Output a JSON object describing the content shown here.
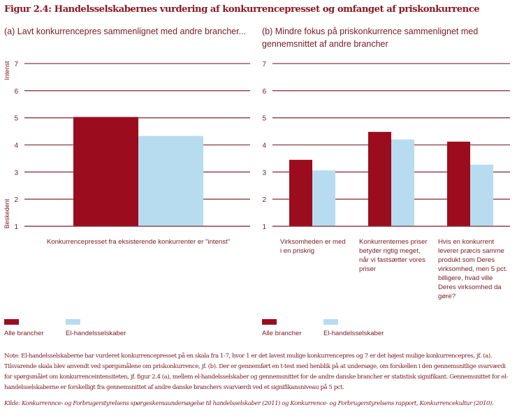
{
  "figure": {
    "title": "Figur 2.4: Handelsselskabernes vurdering af konkurrencepresset og omfanget af priskonkurrence",
    "note": "Note: El-handelsselskaberne har vurderet konkurrencepresset på en skala fra 1-7, hvor 1 er det lavest mulige konkurrencepres og 7 er det højest mulige konkurrencepres, jf. (a).  Tilsvarende skala blev anvendt ved spørgsmålene om priskonkurrence, jf. (b). Der er gennemført en t-test med henblik på at undersøge, om forskellen i den gennemsnitlige svarværdi for spørgsmålet om konkurrenceintensiteten, jf. figur 2.4 (a), mellem el-handelsselskaber og gennemsnittet for de andre danske brancher er statistisk signifikant. Gennemsnittet for el-handelsselskaberne er forskelligt fra gennemsnittet af andre danske branchers svarværdi ved et signifikansniveau på 5 pct.",
    "source": "Kilde: Konkurrennce- og Forbrugerstyrelsens spørgeskemaundersøgelse til handelsselskaber (2011) og Konkurrence- og Forbrugerstyrelsens rapport, Konkurrencekultur (2010)."
  },
  "colors": {
    "series_all": "#9b0c1e",
    "series_el": "#b7dcf0",
    "grid": "#8b3a44",
    "text": "#7a1a22"
  },
  "chart_data": [
    {
      "type": "bar",
      "title": "(a) Lavt konkurrencepres sammenlignet med andre brancher...",
      "xlabel": "",
      "ylabel_top": "Intenst",
      "ylabel_bottom": "Beskedent",
      "ylim": [
        1,
        7
      ],
      "yticks": [
        "1",
        "2",
        "3",
        "4",
        "5",
        "6",
        "7"
      ],
      "grid": true,
      "categories": [
        "Konkurrencepresset fra eksisterende konkurrenter er \"intenst\""
      ],
      "series": [
        {
          "name": "Alle brancher",
          "values": [
            5.03
          ]
        },
        {
          "name": "El-handelsselskaber",
          "values": [
            4.33
          ]
        }
      ],
      "legend": [
        "Alle brancher",
        "El-handelsselskaber"
      ],
      "legend_position": "bottom-left"
    },
    {
      "type": "bar",
      "title": "(b) Mindre fokus på priskonkurrence sammenlignet med gennemsnittet af andre brancher",
      "xlabel": "",
      "ylim": [
        1,
        7
      ],
      "yticks": [
        "1",
        "2",
        "3",
        "4",
        "5",
        "6",
        "7"
      ],
      "grid": true,
      "categories": [
        "Virksomheden er med i en priskrig",
        "Konkurrenternes priser betyder rigtig meget, når vi fastsætter vores priser",
        "Hvis en konkurrent leverer præcis samme produkt som Deres virksomhed, men 5 pct. billigere, hvad ville Deres virksomhed da gøre?"
      ],
      "series": [
        {
          "name": "Alle brancher",
          "values": [
            3.45,
            4.48,
            4.12
          ]
        },
        {
          "name": "El-handelsselskaber",
          "values": [
            3.06,
            4.2,
            3.27
          ]
        }
      ],
      "legend": [
        "Alle brancher",
        "El-handelsselskaber"
      ],
      "legend_position": "bottom-left"
    }
  ]
}
